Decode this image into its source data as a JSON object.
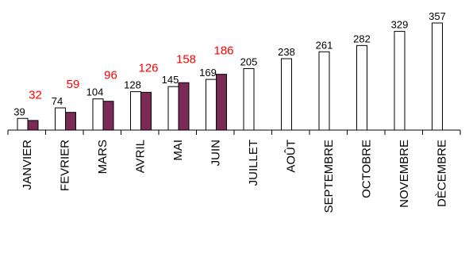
{
  "chart_data": {
    "type": "bar",
    "title": "",
    "xlabel": "",
    "ylabel": "",
    "categories": [
      "JANVIER",
      "FEVRIER",
      "MARS",
      "AVRIL",
      "MAI",
      "JUIN",
      "JUILLET",
      "AOÛT",
      "SEPTEMBRE",
      "OCTOBRE",
      "NOVEMBRE",
      "DÈCEMBRE"
    ],
    "series": [
      {
        "values": [
          39,
          74,
          104,
          128,
          145,
          169,
          205,
          238,
          261,
          282,
          329,
          357
        ],
        "color": "#ffffff",
        "label_color": "#000000"
      },
      {
        "values": [
          32,
          59,
          96,
          126,
          158,
          186,
          null,
          null,
          null,
          null,
          null,
          null
        ],
        "color": "#7b2a55",
        "label_color": "#ff0000"
      }
    ],
    "ylim": [
      0,
      380
    ],
    "grid": false,
    "legend": "none"
  }
}
